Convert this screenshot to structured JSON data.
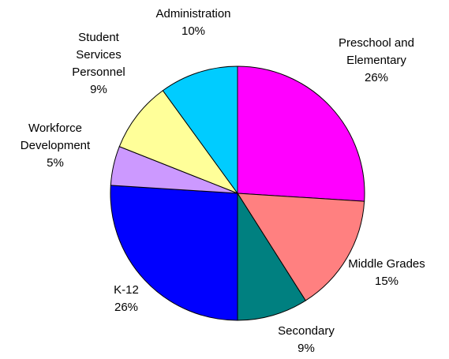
{
  "chart_data": {
    "type": "pie",
    "categories": [
      "Preschool and Elementary",
      "Middle Grades",
      "Secondary",
      "K-12",
      "Workforce Development",
      "Student Services Personnel",
      "Administration"
    ],
    "values": [
      26,
      15,
      9,
      26,
      5,
      9,
      10
    ],
    "value_labels": [
      "26%",
      "15%",
      "9%",
      "26%",
      "5%",
      "9%",
      "10%"
    ],
    "colors": [
      "#ff00ff",
      "#ff8080",
      "#008080",
      "#0000ff",
      "#cc99ff",
      "#ffff99",
      "#00ccff"
    ]
  }
}
